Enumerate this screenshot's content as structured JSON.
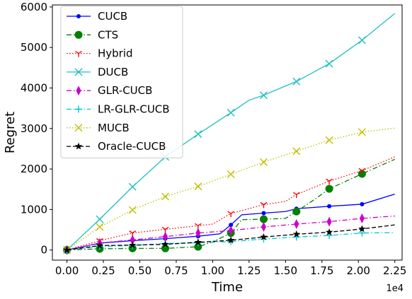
{
  "chart_data": {
    "type": "line",
    "xlabel": "Time",
    "ylabel": "Regret",
    "x_offset_label": "1e4",
    "xlim": [
      -0.1,
      2.3
    ],
    "ylim": [
      -250,
      6050
    ],
    "xticks": [
      0.0,
      0.25,
      0.5,
      0.75,
      1.0,
      1.25,
      1.5,
      1.75,
      2.0,
      2.25
    ],
    "xtick_labels": [
      "0.00",
      "0.25",
      "0.50",
      "0.75",
      "1.00",
      "1.25",
      "1.50",
      "1.75",
      "2.00",
      "2.25"
    ],
    "yticks": [
      0,
      1000,
      2000,
      3000,
      4000,
      5000,
      6000
    ],
    "ytick_labels": [
      "0",
      "1000",
      "2000",
      "3000",
      "4000",
      "5000",
      "6000"
    ],
    "legend_position": "top-left",
    "grid": false,
    "series": [
      {
        "name": "CUCB",
        "color": "#0000ff",
        "linestyle": "solid",
        "marker": "dot",
        "line_x": [
          0,
          0.225,
          0.45,
          0.675,
          0.9,
          1.05,
          1.125,
          1.2,
          1.35,
          1.5,
          1.575,
          1.8,
          2.025,
          2.25
        ],
        "line_y": [
          0,
          170,
          230,
          280,
          340,
          400,
          620,
          870,
          910,
          950,
          1020,
          1080,
          1130,
          1380
        ],
        "marker_x": [
          0,
          0.225,
          0.45,
          0.675,
          0.9,
          1.125,
          1.35,
          1.575,
          1.8,
          2.025
        ],
        "marker_y": [
          0,
          170,
          230,
          280,
          340,
          620,
          910,
          1020,
          1080,
          1130
        ]
      },
      {
        "name": "CTS",
        "color": "#008000",
        "linestyle": "dashdot",
        "marker": "circle",
        "line_x": [
          0,
          0.225,
          0.45,
          0.675,
          0.9,
          1.0,
          1.125,
          1.2,
          1.35,
          1.5,
          1.575,
          1.7,
          1.8,
          2.025,
          2.25
        ],
        "line_y": [
          0,
          30,
          40,
          40,
          80,
          200,
          420,
          750,
          760,
          780,
          950,
          1250,
          1510,
          1880,
          2240
        ],
        "marker_x": [
          0,
          0.225,
          0.45,
          0.675,
          0.9,
          1.125,
          1.35,
          1.575,
          1.8,
          2.025
        ],
        "marker_y": [
          0,
          30,
          40,
          40,
          80,
          420,
          760,
          950,
          1510,
          1880
        ]
      },
      {
        "name": "Hybrid",
        "color": "#ff0000",
        "linestyle": "dotted",
        "marker": "tri_down",
        "line_x": [
          0,
          0.225,
          0.45,
          0.675,
          0.9,
          1.0,
          1.125,
          1.35,
          1.5,
          1.575,
          1.8,
          2.025,
          2.25
        ],
        "line_y": [
          0,
          230,
          420,
          510,
          600,
          640,
          900,
          1120,
          1200,
          1370,
          1700,
          1960,
          2300
        ],
        "marker_x": [
          0,
          0.225,
          0.45,
          0.675,
          0.9,
          1.125,
          1.35,
          1.575,
          1.8,
          2.025
        ],
        "marker_y": [
          0,
          230,
          420,
          510,
          600,
          900,
          1120,
          1370,
          1700,
          1960
        ]
      },
      {
        "name": "DUCB",
        "color": "#20c0c0",
        "linestyle": "solid",
        "marker": "x",
        "line_x": [
          0,
          0.225,
          0.45,
          0.675,
          0.9,
          1.125,
          1.25,
          1.35,
          1.5,
          1.575,
          1.8,
          2.025,
          2.25
        ],
        "line_y": [
          0,
          760,
          1560,
          2300,
          2860,
          3390,
          3700,
          3820,
          4050,
          4160,
          4600,
          5180,
          5840
        ],
        "marker_x": [
          0,
          0.225,
          0.45,
          0.675,
          0.9,
          1.125,
          1.35,
          1.575,
          1.8,
          2.025
        ],
        "marker_y": [
          0,
          760,
          1560,
          2300,
          2860,
          3390,
          3820,
          4160,
          4600,
          5180
        ]
      },
      {
        "name": "GLR-CUCB",
        "color": "#cc00cc",
        "linestyle": "dashdot",
        "marker": "thin_diamond",
        "line_x": [
          0,
          0.225,
          0.45,
          0.675,
          0.9,
          1.125,
          1.35,
          1.575,
          1.8,
          2.025,
          2.25
        ],
        "line_y": [
          0,
          170,
          250,
          330,
          420,
          480,
          570,
          640,
          700,
          780,
          840
        ],
        "marker_x": [
          0,
          0.225,
          0.45,
          0.675,
          0.9,
          1.125,
          1.35,
          1.575,
          1.8,
          2.025
        ],
        "marker_y": [
          0,
          170,
          250,
          330,
          420,
          480,
          570,
          640,
          700,
          780
        ]
      },
      {
        "name": "LR-GLR-CUCB",
        "color": "#00c8d0",
        "linestyle": "dashdot",
        "marker": "plus",
        "line_x": [
          0,
          0.225,
          0.45,
          0.675,
          0.9,
          1.125,
          1.35,
          1.575,
          1.8,
          2.025,
          2.25
        ],
        "line_y": [
          0,
          90,
          110,
          160,
          180,
          210,
          270,
          320,
          360,
          420,
          430
        ],
        "marker_x": [
          0,
          0.225,
          0.45,
          0.675,
          0.9,
          1.125,
          1.35,
          1.575,
          1.8,
          2.025
        ],
        "marker_y": [
          0,
          90,
          110,
          160,
          180,
          210,
          270,
          320,
          360,
          420
        ]
      },
      {
        "name": "MUCB",
        "color": "#bfbf00",
        "linestyle": "dotted",
        "marker": "x",
        "line_x": [
          0,
          0.225,
          0.45,
          0.675,
          0.9,
          1.125,
          1.35,
          1.575,
          1.8,
          2.025,
          2.25
        ],
        "line_y": [
          0,
          570,
          990,
          1320,
          1570,
          1870,
          2170,
          2440,
          2710,
          2910,
          3010
        ],
        "marker_x": [
          0,
          0.225,
          0.45,
          0.675,
          0.9,
          1.125,
          1.35,
          1.575,
          1.8,
          2.025
        ],
        "marker_y": [
          0,
          570,
          990,
          1320,
          1570,
          1870,
          2170,
          2440,
          2710,
          2910
        ]
      },
      {
        "name": "Oracle-CUCB",
        "color": "#000000",
        "linestyle": "dashed",
        "marker": "star",
        "line_x": [
          0,
          0.225,
          0.45,
          0.675,
          0.9,
          1.125,
          1.35,
          1.575,
          1.8,
          2.025,
          2.25
        ],
        "line_y": [
          0,
          110,
          120,
          140,
          190,
          240,
          320,
          390,
          440,
          520,
          620
        ],
        "marker_x": [
          0,
          0.225,
          0.45,
          0.675,
          0.9,
          1.125,
          1.35,
          1.575,
          1.8,
          2.025
        ],
        "marker_y": [
          0,
          110,
          120,
          140,
          190,
          240,
          320,
          390,
          440,
          520
        ]
      }
    ]
  }
}
